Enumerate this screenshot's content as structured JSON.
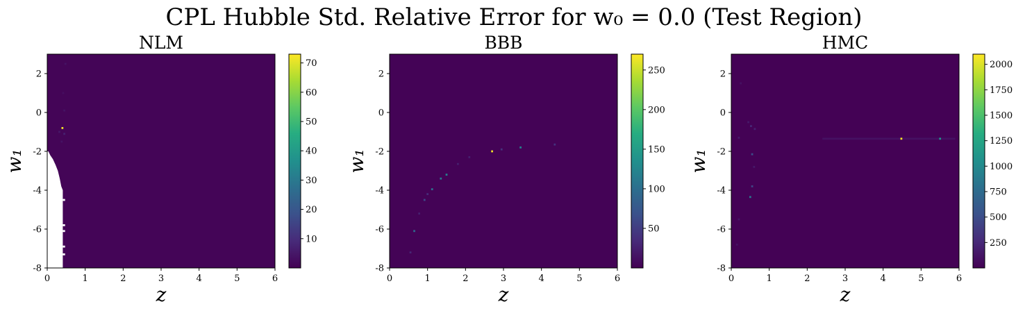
{
  "figure": {
    "title": "CPL Hubble Std. Relative Error for w₀ = 0.0 (Test Region)"
  },
  "colormap": "viridis",
  "colors": {
    "background_cell": "#440154",
    "nan_region": "#ffffff"
  },
  "chart_data": [
    {
      "type": "heatmap",
      "title": "NLM",
      "xlabel": "z",
      "ylabel": "w₁",
      "xlim": [
        0,
        6
      ],
      "ylim": [
        -8,
        3
      ],
      "xticks": [
        0,
        1,
        2,
        3,
        4,
        5,
        6
      ],
      "yticks": [
        -8,
        -6,
        -4,
        -2,
        0,
        2
      ],
      "grid": false,
      "colorbar": {
        "min": 0,
        "max": 73,
        "ticks": [
          10,
          20,
          30,
          40,
          50,
          60,
          70
        ]
      },
      "background_value": 0.8,
      "hotspots": [
        {
          "z": 0.4,
          "w1": -0.8,
          "value": 72
        },
        {
          "z": 0.45,
          "w1": -1.1,
          "value": 7
        },
        {
          "z": 0.32,
          "w1": -1.0,
          "value": 5
        },
        {
          "z": 0.45,
          "w1": 0.1,
          "value": 4
        },
        {
          "z": 0.48,
          "w1": 2.5,
          "value": 4
        },
        {
          "z": 0.42,
          "w1": 1.0,
          "value": 3
        },
        {
          "z": 0.38,
          "w1": -1.5,
          "value": 4
        }
      ],
      "nan_boundary": [
        {
          "w1": -2.0,
          "z_max": 0.03
        },
        {
          "w1": -2.2,
          "z_max": 0.08
        },
        {
          "w1": -2.4,
          "z_max": 0.15
        },
        {
          "w1": -2.7,
          "z_max": 0.22
        },
        {
          "w1": -3.0,
          "z_max": 0.28
        },
        {
          "w1": -3.4,
          "z_max": 0.33
        },
        {
          "w1": -3.8,
          "z_max": 0.37
        },
        {
          "w1": -4.0,
          "z_max": 0.41
        },
        {
          "w1": -8.0,
          "z_max": 0.41
        }
      ],
      "nan_gaps": [
        -4.5,
        -5.8,
        -6.1,
        -6.9,
        -7.3
      ]
    },
    {
      "type": "heatmap",
      "title": "BBB",
      "xlabel": "z",
      "ylabel": "w₁",
      "xlim": [
        0,
        6
      ],
      "ylim": [
        -8,
        3
      ],
      "xticks": [
        0,
        1,
        2,
        3,
        4,
        5,
        6
      ],
      "yticks": [
        -8,
        -6,
        -4,
        -2,
        0,
        2
      ],
      "grid": false,
      "colorbar": {
        "min": 0,
        "max": 270,
        "ticks": [
          50,
          100,
          150,
          200,
          250
        ]
      },
      "background_value": 2,
      "hotspots": [
        {
          "z": 2.7,
          "w1": -2.0,
          "value": 265
        },
        {
          "z": 3.45,
          "w1": -1.8,
          "value": 120
        },
        {
          "z": 1.5,
          "w1": -3.2,
          "value": 120
        },
        {
          "z": 1.35,
          "w1": -3.4,
          "value": 110
        },
        {
          "z": 1.12,
          "w1": -3.95,
          "value": 100
        },
        {
          "z": 0.92,
          "w1": -4.5,
          "value": 60
        },
        {
          "z": 0.65,
          "w1": -6.1,
          "value": 95
        },
        {
          "z": 0.55,
          "w1": -7.2,
          "value": 30
        },
        {
          "z": 4.35,
          "w1": -1.65,
          "value": 40
        },
        {
          "z": 2.95,
          "w1": -1.9,
          "value": 40
        },
        {
          "z": 2.1,
          "w1": -2.3,
          "value": 25
        },
        {
          "z": 1.8,
          "w1": -2.65,
          "value": 25
        },
        {
          "z": 0.78,
          "w1": -5.2,
          "value": 25
        },
        {
          "z": 1.0,
          "w1": -4.2,
          "value": 35
        }
      ]
    },
    {
      "type": "heatmap",
      "title": "HMC",
      "xlabel": "z",
      "ylabel": "w₁",
      "xlim": [
        0,
        6
      ],
      "ylim": [
        -8,
        3
      ],
      "xticks": [
        0,
        1,
        2,
        3,
        4,
        5,
        6
      ],
      "yticks": [
        -8,
        -6,
        -4,
        -2,
        0,
        2
      ],
      "grid": false,
      "colorbar": {
        "min": 0,
        "max": 2100,
        "ticks": [
          250,
          500,
          750,
          1000,
          1250,
          1500,
          1750,
          2000
        ]
      },
      "background_value": 5,
      "hotspots": [
        {
          "z": 4.48,
          "w1": -1.35,
          "value": 2080
        },
        {
          "z": 5.5,
          "w1": -1.35,
          "value": 1100
        },
        {
          "z": 0.5,
          "w1": -4.35,
          "value": 850
        },
        {
          "z": 0.55,
          "w1": -2.15,
          "value": 500
        },
        {
          "z": 0.55,
          "w1": -3.8,
          "value": 450
        },
        {
          "z": 0.52,
          "w1": -0.7,
          "value": 250
        },
        {
          "z": 0.62,
          "w1": -0.85,
          "value": 200
        },
        {
          "z": 0.45,
          "w1": -0.5,
          "value": 150
        },
        {
          "z": 0.6,
          "w1": -2.8,
          "value": 150
        },
        {
          "z": 0.2,
          "w1": -1.3,
          "value": 150
        },
        {
          "z": 0.25,
          "w1": 1.5,
          "value": 100
        },
        {
          "z": 0.2,
          "w1": -5.5,
          "value": 120
        },
        {
          "z": 0.15,
          "w1": -6.8,
          "value": 100
        }
      ],
      "ridges": [
        {
          "w1": -1.35,
          "z_from": 2.4,
          "z_to": 5.9,
          "value": 120
        }
      ]
    }
  ]
}
